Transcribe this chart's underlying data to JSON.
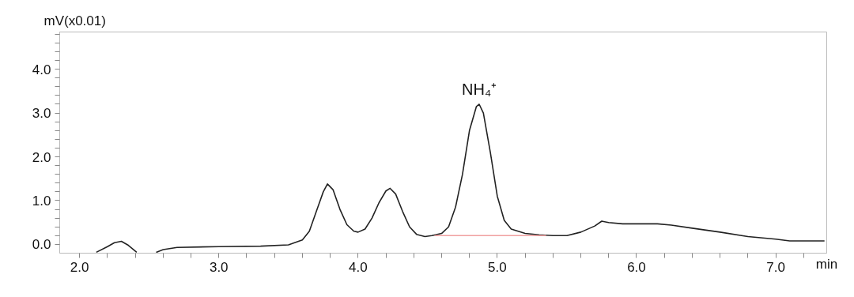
{
  "chart_data": {
    "type": "line",
    "ylabel": "mV(x0.01)",
    "xlabel": "min",
    "annotations": [
      {
        "text": "NH₄⁺",
        "x": 4.87,
        "y": 3.2
      }
    ],
    "xlim": [
      1.857,
      7.366
    ],
    "ylim": [
      -0.2,
      4.85
    ],
    "xticks": [
      {
        "value": 2,
        "label": "2.0"
      },
      {
        "value": 2.2,
        "label": null
      },
      {
        "value": 2.4,
        "label": null
      },
      {
        "value": 2.6,
        "label": null
      },
      {
        "value": 2.8,
        "label": null
      },
      {
        "value": 3,
        "label": "3.0"
      },
      {
        "value": 3.2,
        "label": null
      },
      {
        "value": 3.4,
        "label": null
      },
      {
        "value": 3.6,
        "label": null
      },
      {
        "value": 3.8,
        "label": null
      },
      {
        "value": 4,
        "label": "4.0"
      },
      {
        "value": 4.2,
        "label": null
      },
      {
        "value": 4.4,
        "label": null
      },
      {
        "value": 4.6,
        "label": null
      },
      {
        "value": 4.8,
        "label": null
      },
      {
        "value": 5,
        "label": "5.0"
      },
      {
        "value": 5.2,
        "label": null
      },
      {
        "value": 5.4,
        "label": null
      },
      {
        "value": 5.6,
        "label": null
      },
      {
        "value": 5.8,
        "label": null
      },
      {
        "value": 6,
        "label": "6.0"
      },
      {
        "value": 6.2,
        "label": null
      },
      {
        "value": 6.4,
        "label": null
      },
      {
        "value": 6.6,
        "label": null
      },
      {
        "value": 6.8,
        "label": null
      },
      {
        "value": 7,
        "label": "7.0"
      },
      {
        "value": 7.2,
        "label": null
      }
    ],
    "yticks": [
      {
        "value": 0,
        "label": "0.0"
      },
      {
        "value": 0.2,
        "label": null
      },
      {
        "value": 0.4,
        "label": null
      },
      {
        "value": 0.6,
        "label": null
      },
      {
        "value": 0.8,
        "label": null
      },
      {
        "value": 1,
        "label": "1.0"
      },
      {
        "value": 1.2,
        "label": null
      },
      {
        "value": 1.4,
        "label": null
      },
      {
        "value": 1.6,
        "label": null
      },
      {
        "value": 1.8,
        "label": null
      },
      {
        "value": 2,
        "label": "2.0"
      },
      {
        "value": 2.2,
        "label": null
      },
      {
        "value": 2.4,
        "label": null
      },
      {
        "value": 2.6,
        "label": null
      },
      {
        "value": 2.8,
        "label": null
      },
      {
        "value": 3,
        "label": "3.0"
      },
      {
        "value": 3.2,
        "label": null
      },
      {
        "value": 3.4,
        "label": null
      },
      {
        "value": 3.6,
        "label": null
      },
      {
        "value": 3.8,
        "label": null
      },
      {
        "value": 4,
        "label": "4.0"
      },
      {
        "value": 4.2,
        "label": null
      },
      {
        "value": 4.4,
        "label": null
      },
      {
        "value": 4.6,
        "label": null
      },
      {
        "value": 4.8,
        "label": null
      }
    ],
    "grid": false,
    "series": [
      {
        "color": "#222222",
        "x": [
          2.12,
          2.2,
          2.25,
          2.3,
          2.35,
          2.41,
          2.48,
          2.55,
          2.6,
          2.7,
          3.0,
          3.3,
          3.5,
          3.6,
          3.65,
          3.7,
          3.75,
          3.78,
          3.82,
          3.87,
          3.92,
          3.97,
          4.0,
          4.05,
          4.1,
          4.15,
          4.2,
          4.23,
          4.27,
          4.32,
          4.37,
          4.42,
          4.48,
          4.53,
          4.6,
          4.65,
          4.7,
          4.75,
          4.8,
          4.85,
          4.87,
          4.9,
          4.95,
          5.0,
          5.05,
          5.1,
          5.2,
          5.3,
          5.4,
          5.5,
          5.6,
          5.7,
          5.75,
          5.8,
          5.9,
          6.0,
          6.15,
          6.25,
          6.4,
          6.6,
          6.8,
          7.0,
          7.1,
          7.2,
          7.35
        ],
        "values": [
          -0.18,
          -0.05,
          0.04,
          0.07,
          -0.02,
          -0.18,
          null,
          -0.18,
          -0.12,
          -0.07,
          -0.05,
          -0.04,
          -0.01,
          0.1,
          0.3,
          0.75,
          1.2,
          1.38,
          1.25,
          0.8,
          0.45,
          0.3,
          0.28,
          0.35,
          0.6,
          0.95,
          1.22,
          1.28,
          1.15,
          0.75,
          0.4,
          0.23,
          0.18,
          0.2,
          0.25,
          0.4,
          0.85,
          1.6,
          2.6,
          3.15,
          3.2,
          3.0,
          2.1,
          1.1,
          0.55,
          0.35,
          0.25,
          0.22,
          0.2,
          0.2,
          0.28,
          0.42,
          0.53,
          0.5,
          0.47,
          0.47,
          0.47,
          0.44,
          0.37,
          0.28,
          0.18,
          0.12,
          0.08,
          0.08,
          0.08
        ]
      },
      {
        "color": "#f0a0a0",
        "x": [
          4.55,
          5.35
        ],
        "values": [
          0.2,
          0.2
        ]
      }
    ]
  }
}
